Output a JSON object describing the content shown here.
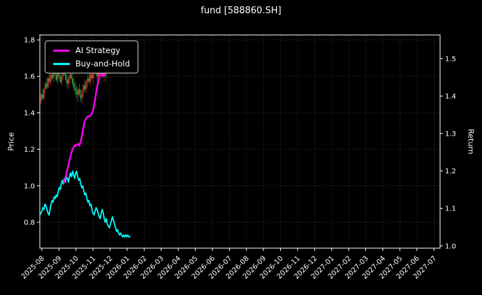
{
  "chart_data": {
    "type": "candlestick+line",
    "title": "fund [588860.SH]",
    "background": "#000000",
    "text_color": "#ffffff",
    "grid": {
      "show": true,
      "style": "dotted",
      "color": "#4d4d4d"
    },
    "legend": {
      "position": "upper-left"
    },
    "x_axis": {
      "range": [
        -0.12,
        23.36
      ],
      "tick_labels": [
        "2025-08",
        "2025-09",
        "2025-10",
        "2025-11",
        "2025-12",
        "2026-01",
        "2026-02",
        "2026-03",
        "2026-04",
        "2026-05",
        "2026-06",
        "2026-07",
        "2026-08",
        "2026-09",
        "2026-10",
        "2026-11",
        "2026-12",
        "2027-01",
        "2027-02",
        "2027-03",
        "2027-04",
        "2027-05",
        "2027-06",
        "2027-07"
      ]
    },
    "y_left": {
      "label": "Price",
      "ticks": [
        0.8,
        1.0,
        1.2,
        1.4,
        1.6,
        1.8
      ],
      "range": [
        0.658,
        1.827
      ]
    },
    "y_right": {
      "label": "Return",
      "ticks": [
        1.0,
        1.1,
        1.2,
        1.3,
        1.4,
        1.5
      ],
      "range": [
        0.994,
        1.563
      ]
    },
    "series": [
      {
        "name": "AI Strategy",
        "color": "#ff00ff",
        "axis": "left",
        "points": [
          [
            1.3,
            1.02
          ],
          [
            1.4,
            1.05
          ],
          [
            1.5,
            1.09
          ],
          [
            1.6,
            1.13
          ],
          [
            1.7,
            1.17
          ],
          [
            1.8,
            1.2
          ],
          [
            1.9,
            1.22
          ],
          [
            2.0,
            1.22
          ],
          [
            2.1,
            1.23
          ],
          [
            2.2,
            1.22
          ],
          [
            2.3,
            1.25
          ],
          [
            2.4,
            1.3
          ],
          [
            2.5,
            1.35
          ],
          [
            2.6,
            1.37
          ],
          [
            2.7,
            1.38
          ],
          [
            2.8,
            1.38
          ],
          [
            2.9,
            1.39
          ],
          [
            3.0,
            1.41
          ],
          [
            3.1,
            1.46
          ],
          [
            3.2,
            1.52
          ],
          [
            3.3,
            1.57
          ],
          [
            3.4,
            1.61
          ],
          [
            3.5,
            1.63
          ],
          [
            3.55,
            1.6
          ],
          [
            3.6,
            1.63
          ],
          [
            3.65,
            1.61
          ],
          [
            3.7,
            1.64
          ],
          [
            3.75,
            1.66
          ],
          [
            3.8,
            1.67
          ]
        ]
      },
      {
        "name": "Buy-and-Hold",
        "color": "#00ffff",
        "axis": "left",
        "points": [
          [
            -0.12,
            0.84
          ],
          [
            0.0,
            0.86
          ],
          [
            0.06,
            0.88
          ],
          [
            0.12,
            0.87
          ],
          [
            0.18,
            0.9
          ],
          [
            0.24,
            0.89
          ],
          [
            0.3,
            0.87
          ],
          [
            0.36,
            0.85
          ],
          [
            0.42,
            0.84
          ],
          [
            0.48,
            0.87
          ],
          [
            0.54,
            0.9
          ],
          [
            0.6,
            0.92
          ],
          [
            0.66,
            0.91
          ],
          [
            0.72,
            0.94
          ],
          [
            0.78,
            0.93
          ],
          [
            0.84,
            0.95
          ],
          [
            0.9,
            0.94
          ],
          [
            0.96,
            0.97
          ],
          [
            1.02,
            0.99
          ],
          [
            1.08,
            0.98
          ],
          [
            1.14,
            1.01
          ],
          [
            1.2,
            1.03
          ],
          [
            1.26,
            1.01
          ],
          [
            1.32,
            1.04
          ],
          [
            1.38,
            1.02
          ],
          [
            1.44,
            1.05
          ],
          [
            1.5,
            1.04
          ],
          [
            1.56,
            1.02
          ],
          [
            1.62,
            1.05
          ],
          [
            1.68,
            1.07
          ],
          [
            1.74,
            1.05
          ],
          [
            1.8,
            1.08
          ],
          [
            1.86,
            1.06
          ],
          [
            1.92,
            1.04
          ],
          [
            1.98,
            1.07
          ],
          [
            2.04,
            1.08
          ],
          [
            2.1,
            1.05
          ],
          [
            2.16,
            1.03
          ],
          [
            2.22,
            1.04
          ],
          [
            2.28,
            1.01
          ],
          [
            2.34,
            0.99
          ],
          [
            2.4,
            1.0
          ],
          [
            2.46,
            0.97
          ],
          [
            2.52,
            0.95
          ],
          [
            2.58,
            0.96
          ],
          [
            2.64,
            0.93
          ],
          [
            2.7,
            0.91
          ],
          [
            2.76,
            0.92
          ],
          [
            2.82,
            0.89
          ],
          [
            2.88,
            0.9
          ],
          [
            2.94,
            0.87
          ],
          [
            3.0,
            0.85
          ],
          [
            3.06,
            0.84
          ],
          [
            3.12,
            0.86
          ],
          [
            3.18,
            0.88
          ],
          [
            3.24,
            0.87
          ],
          [
            3.3,
            0.85
          ],
          [
            3.36,
            0.83
          ],
          [
            3.42,
            0.82
          ],
          [
            3.48,
            0.85
          ],
          [
            3.54,
            0.87
          ],
          [
            3.6,
            0.85
          ],
          [
            3.66,
            0.82
          ],
          [
            3.72,
            0.8
          ],
          [
            3.78,
            0.82
          ],
          [
            3.84,
            0.79
          ],
          [
            3.9,
            0.78
          ],
          [
            3.96,
            0.77
          ],
          [
            4.02,
            0.79
          ],
          [
            4.08,
            0.81
          ],
          [
            4.14,
            0.83
          ],
          [
            4.2,
            0.81
          ],
          [
            4.26,
            0.79
          ],
          [
            4.32,
            0.77
          ],
          [
            4.38,
            0.75
          ],
          [
            4.44,
            0.76
          ],
          [
            4.5,
            0.74
          ],
          [
            4.56,
            0.73
          ],
          [
            4.62,
            0.74
          ],
          [
            4.68,
            0.73
          ],
          [
            4.74,
            0.72
          ],
          [
            4.8,
            0.73
          ],
          [
            4.86,
            0.72
          ],
          [
            4.92,
            0.73
          ],
          [
            4.98,
            0.72
          ],
          [
            5.04,
            0.73
          ],
          [
            5.1,
            0.72
          ],
          [
            5.16,
            0.72
          ]
        ]
      }
    ],
    "candles": {
      "up_color": "#d23a2e",
      "down_color": "#2e9e3e",
      "ohlc": [
        [
          -0.12,
          1.45,
          1.48,
          1.43,
          1.47
        ],
        [
          -0.04,
          1.47,
          1.51,
          1.45,
          1.5
        ],
        [
          0.04,
          1.5,
          1.53,
          1.47,
          1.48
        ],
        [
          0.12,
          1.48,
          1.54,
          1.47,
          1.53
        ],
        [
          0.2,
          1.53,
          1.57,
          1.51,
          1.56
        ],
        [
          0.28,
          1.56,
          1.59,
          1.53,
          1.54
        ],
        [
          0.36,
          1.54,
          1.6,
          1.53,
          1.59
        ],
        [
          0.44,
          1.59,
          1.62,
          1.56,
          1.57
        ],
        [
          0.52,
          1.57,
          1.63,
          1.55,
          1.61
        ],
        [
          0.6,
          1.61,
          1.64,
          1.58,
          1.59
        ],
        [
          0.68,
          1.59,
          1.65,
          1.57,
          1.63
        ],
        [
          0.76,
          1.63,
          1.66,
          1.6,
          1.61
        ],
        [
          0.84,
          1.61,
          1.64,
          1.57,
          1.58
        ],
        [
          0.92,
          1.58,
          1.63,
          1.56,
          1.62
        ],
        [
          1.0,
          1.62,
          1.66,
          1.59,
          1.6
        ],
        [
          1.08,
          1.6,
          1.63,
          1.56,
          1.57
        ],
        [
          1.16,
          1.57,
          1.62,
          1.55,
          1.6
        ],
        [
          1.24,
          1.6,
          1.65,
          1.58,
          1.63
        ],
        [
          1.32,
          1.63,
          1.66,
          1.6,
          1.61
        ],
        [
          1.4,
          1.61,
          1.64,
          1.57,
          1.58
        ],
        [
          1.48,
          1.58,
          1.61,
          1.54,
          1.56
        ],
        [
          1.56,
          1.56,
          1.6,
          1.53,
          1.59
        ],
        [
          1.64,
          1.59,
          1.63,
          1.56,
          1.61
        ],
        [
          1.72,
          1.61,
          1.64,
          1.58,
          1.59
        ],
        [
          1.8,
          1.59,
          1.62,
          1.55,
          1.56
        ],
        [
          1.88,
          1.56,
          1.59,
          1.52,
          1.54
        ],
        [
          1.96,
          1.54,
          1.57,
          1.5,
          1.52
        ],
        [
          2.04,
          1.52,
          1.55,
          1.48,
          1.5
        ],
        [
          2.12,
          1.5,
          1.54,
          1.46,
          1.53
        ],
        [
          2.2,
          1.53,
          1.56,
          1.49,
          1.5
        ],
        [
          2.28,
          1.5,
          1.53,
          1.46,
          1.48
        ],
        [
          2.36,
          1.48,
          1.53,
          1.45,
          1.52
        ],
        [
          2.44,
          1.52,
          1.56,
          1.49,
          1.55
        ],
        [
          2.52,
          1.55,
          1.58,
          1.51,
          1.53
        ],
        [
          2.6,
          1.53,
          1.58,
          1.51,
          1.57
        ],
        [
          2.68,
          1.57,
          1.61,
          1.54,
          1.59
        ],
        [
          2.76,
          1.59,
          1.63,
          1.56,
          1.57
        ],
        [
          2.84,
          1.57,
          1.62,
          1.55,
          1.61
        ],
        [
          2.92,
          1.61,
          1.64,
          1.58,
          1.59
        ],
        [
          3.0,
          1.59,
          1.63,
          1.56,
          1.62
        ],
        [
          3.08,
          1.62,
          1.66,
          1.59,
          1.64
        ],
        [
          3.16,
          1.64,
          1.67,
          1.61,
          1.62
        ],
        [
          3.24,
          1.62,
          1.65,
          1.58,
          1.6
        ],
        [
          3.32,
          1.6,
          1.64,
          1.57,
          1.63
        ],
        [
          3.4,
          1.63,
          1.66,
          1.6,
          1.61
        ],
        [
          3.48,
          1.61,
          1.65,
          1.58,
          1.64
        ],
        [
          3.56,
          1.64,
          1.67,
          1.61,
          1.62
        ],
        [
          3.64,
          1.62,
          1.65,
          1.59,
          1.6
        ],
        [
          3.72,
          1.6,
          1.64,
          1.57,
          1.63
        ],
        [
          3.8,
          1.63,
          1.66,
          1.6,
          1.62
        ]
      ]
    }
  }
}
